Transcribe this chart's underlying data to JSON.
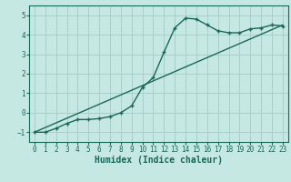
{
  "title": "",
  "xlabel": "Humidex (Indice chaleur)",
  "ylabel": "",
  "background_color": "#c5e8e2",
  "grid_color": "#a8cfc8",
  "line_color": "#1a6858",
  "xlim": [
    -0.5,
    23.5
  ],
  "ylim": [
    -1.5,
    5.5
  ],
  "yticks": [
    -1,
    0,
    1,
    2,
    3,
    4,
    5
  ],
  "xticks": [
    0,
    1,
    2,
    3,
    4,
    5,
    6,
    7,
    8,
    9,
    10,
    11,
    12,
    13,
    14,
    15,
    16,
    17,
    18,
    19,
    20,
    21,
    22,
    23
  ],
  "curve1_x": [
    0,
    1,
    2,
    3,
    4,
    5,
    6,
    7,
    8,
    9,
    10,
    11,
    12,
    13,
    14,
    15,
    16,
    17,
    18,
    19,
    20,
    21,
    22,
    23
  ],
  "curve1_y": [
    -1.0,
    -1.0,
    -0.8,
    -0.55,
    -0.35,
    -0.35,
    -0.3,
    -0.2,
    0.0,
    0.35,
    1.3,
    1.8,
    3.1,
    4.35,
    4.85,
    4.8,
    4.5,
    4.2,
    4.1,
    4.1,
    4.3,
    4.35,
    4.5,
    4.45
  ],
  "curve2_x": [
    0,
    23
  ],
  "curve2_y": [
    -1.0,
    4.5
  ],
  "font_family": "monospace"
}
